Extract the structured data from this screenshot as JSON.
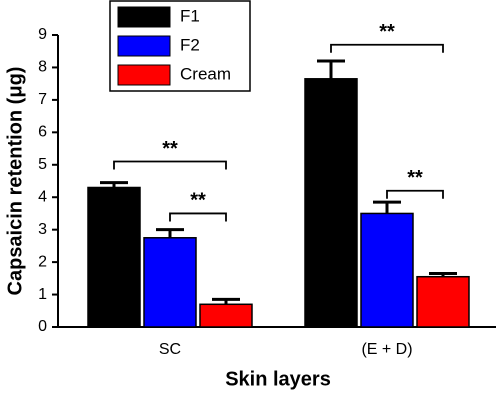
{
  "chart_data": {
    "type": "bar",
    "x_label": "Skin layers",
    "y_label": "Capsaicin retention (μg)",
    "categories": [
      "SC",
      "(E + D)"
    ],
    "series": [
      {
        "name": "F1",
        "color": "#000000",
        "values": [
          4.3,
          7.65
        ],
        "errors": [
          0.15,
          0.55
        ]
      },
      {
        "name": "F2",
        "color": "#0000ff",
        "values": [
          2.75,
          3.5
        ],
        "errors": [
          0.25,
          0.35
        ]
      },
      {
        "name": "Cream",
        "color": "#ff0000",
        "values": [
          0.7,
          1.55
        ],
        "errors": [
          0.15,
          0.1
        ]
      }
    ],
    "ylim": [
      0,
      9
    ],
    "yticks": [
      0,
      1,
      2,
      3,
      4,
      5,
      6,
      7,
      8,
      9
    ],
    "annotations": [
      {
        "label": "**",
        "category": 0,
        "series": [
          0,
          2
        ],
        "y": 5.1
      },
      {
        "label": "**",
        "category": 0,
        "series": [
          1,
          2
        ],
        "y": 3.5
      },
      {
        "label": "**",
        "category": 1,
        "series": [
          0,
          2
        ],
        "y": 8.7
      },
      {
        "label": "**",
        "category": 1,
        "series": [
          1,
          2
        ],
        "y": 4.2
      }
    ],
    "legend": "upper-left"
  }
}
